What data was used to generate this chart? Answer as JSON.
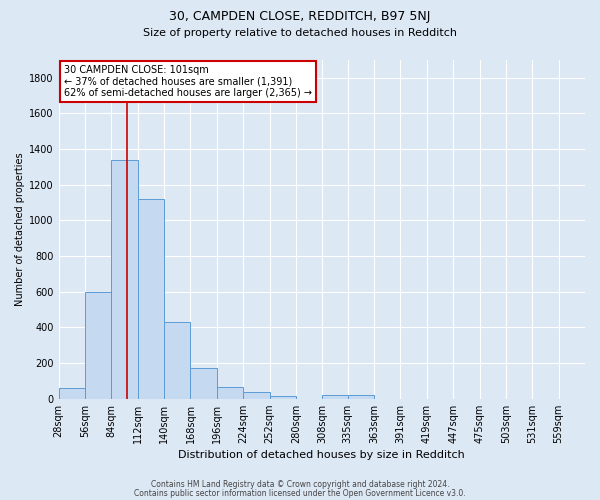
{
  "title": "30, CAMPDEN CLOSE, REDDITCH, B97 5NJ",
  "subtitle": "Size of property relative to detached houses in Redditch",
  "xlabel": "Distribution of detached houses by size in Redditch",
  "ylabel": "Number of detached properties",
  "footer1": "Contains HM Land Registry data © Crown copyright and database right 2024.",
  "footer2": "Contains public sector information licensed under the Open Government Licence v3.0.",
  "bar_color": "#c5d9f0",
  "bar_edge_color": "#5b9bd5",
  "background_color": "#dde8f5",
  "grid_color": "#ffffff",
  "vline_color": "#cc0000",
  "vline_x": 101,
  "bins": [
    28,
    56,
    84,
    112,
    140,
    168,
    196,
    224,
    252,
    280,
    308,
    335,
    363,
    391,
    419,
    447,
    475,
    503,
    531,
    559,
    587
  ],
  "bar_heights": [
    60,
    600,
    1340,
    1120,
    430,
    170,
    65,
    40,
    15,
    0,
    20,
    20,
    0,
    0,
    0,
    0,
    0,
    0,
    0,
    0
  ],
  "ylim": [
    0,
    1900
  ],
  "yticks": [
    0,
    200,
    400,
    600,
    800,
    1000,
    1200,
    1400,
    1600,
    1800
  ],
  "annotation_title": "30 CAMPDEN CLOSE: 101sqm",
  "annotation_line1": "← 37% of detached houses are smaller (1,391)",
  "annotation_line2": "62% of semi-detached houses are larger (2,365) →",
  "annotation_box_color": "#ffffff",
  "annotation_box_edge": "#cc0000",
  "title_fontsize": 9,
  "subtitle_fontsize": 8,
  "xlabel_fontsize": 8,
  "ylabel_fontsize": 7,
  "tick_fontsize": 7,
  "annot_fontsize": 7,
  "footer_fontsize": 5.5
}
